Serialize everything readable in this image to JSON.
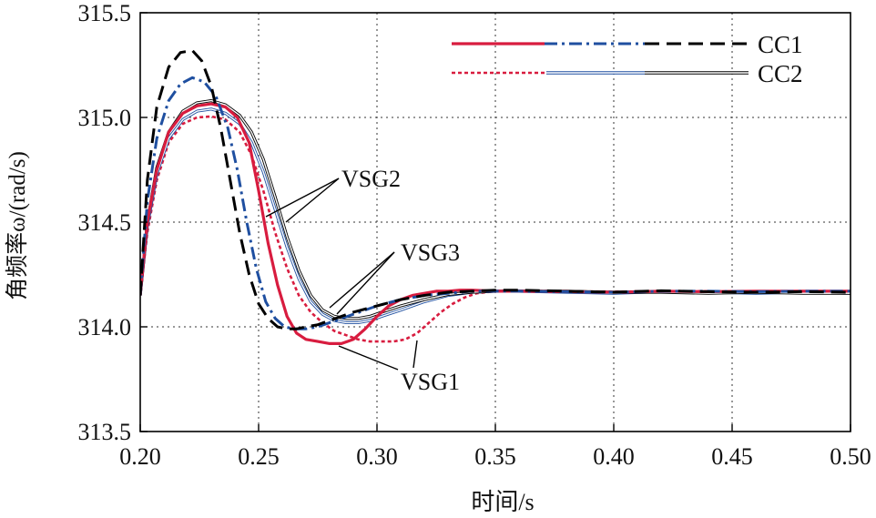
{
  "chart_data": {
    "type": "line",
    "title": "",
    "xlabel": "时间/s",
    "ylabel": "角频率ω/(rad/s)",
    "xlim": [
      0.2,
      0.5
    ],
    "ylim": [
      313.5,
      315.5
    ],
    "x_ticks": [
      "0.20",
      "0.25",
      "0.30",
      "0.35",
      "0.40",
      "0.45",
      "0.50"
    ],
    "y_ticks": [
      "313.5",
      "314.0",
      "314.5",
      "315.0",
      "315.5"
    ],
    "grid": true,
    "legend": [
      {
        "label": "CC1",
        "styles": [
          "VSG1 solid red",
          "VSG2 dash-dot blue",
          "VSG3 dashed black"
        ]
      },
      {
        "label": "CC2",
        "styles": [
          "VSG1 dotted red",
          "VSG2 thin double blue",
          "VSG3 thin double black"
        ]
      }
    ],
    "annotations": [
      "VSG2",
      "VSG3",
      "VSG1"
    ],
    "colors": {
      "vsg1": "#d81c3f",
      "vsg2": "#1f4fa0",
      "vsg3": "#000000"
    },
    "series": [
      {
        "name": "VSG1 CC1",
        "case": "CC1",
        "color": "#d81c3f",
        "style": "solid",
        "x": [
          0.2,
          0.203,
          0.207,
          0.212,
          0.218,
          0.224,
          0.23,
          0.236,
          0.241,
          0.246,
          0.25,
          0.254,
          0.258,
          0.262,
          0.266,
          0.27,
          0.275,
          0.28,
          0.285,
          0.29,
          0.295,
          0.3,
          0.305,
          0.31,
          0.315,
          0.32,
          0.325,
          0.33,
          0.335,
          0.34,
          0.35,
          0.36,
          0.38,
          0.4,
          0.42,
          0.44,
          0.46,
          0.48,
          0.5
        ],
        "y": [
          314.15,
          314.5,
          314.75,
          314.93,
          315.02,
          315.055,
          315.065,
          315.05,
          315.0,
          314.88,
          314.65,
          314.4,
          314.2,
          314.05,
          313.97,
          313.94,
          313.93,
          313.92,
          313.92,
          313.94,
          313.99,
          314.05,
          314.1,
          314.13,
          314.15,
          314.16,
          314.17,
          314.17,
          314.175,
          314.175,
          314.17,
          314.17,
          314.168,
          314.165,
          314.17,
          314.168,
          314.17,
          314.17,
          314.17
        ]
      },
      {
        "name": "VSG2 CC1",
        "case": "CC1",
        "color": "#1f4fa0",
        "style": "dashdot",
        "x": [
          0.2,
          0.203,
          0.207,
          0.212,
          0.217,
          0.222,
          0.227,
          0.232,
          0.237,
          0.241,
          0.245,
          0.249,
          0.253,
          0.257,
          0.261,
          0.265,
          0.27,
          0.275,
          0.28,
          0.29,
          0.3,
          0.31,
          0.32,
          0.33,
          0.34,
          0.35,
          0.36,
          0.38,
          0.4,
          0.42,
          0.44,
          0.46,
          0.48,
          0.5
        ],
        "y": [
          314.15,
          314.6,
          314.9,
          315.08,
          315.16,
          315.19,
          315.17,
          315.1,
          314.95,
          314.75,
          314.5,
          314.28,
          314.12,
          314.04,
          314.0,
          313.99,
          313.99,
          314.0,
          314.02,
          314.06,
          314.1,
          314.13,
          314.15,
          314.16,
          314.17,
          314.17,
          314.17,
          314.168,
          314.165,
          314.17,
          314.17,
          314.168,
          314.17,
          314.17
        ]
      },
      {
        "name": "VSG3 CC1",
        "case": "CC1",
        "color": "#000000",
        "style": "dashed",
        "x": [
          0.2,
          0.203,
          0.207,
          0.212,
          0.217,
          0.222,
          0.226,
          0.23,
          0.234,
          0.238,
          0.242,
          0.246,
          0.25,
          0.254,
          0.258,
          0.262,
          0.266,
          0.27,
          0.275,
          0.28,
          0.29,
          0.3,
          0.31,
          0.32,
          0.33,
          0.34,
          0.35,
          0.36,
          0.38,
          0.4,
          0.42,
          0.44,
          0.46,
          0.48,
          0.5
        ],
        "y": [
          314.15,
          314.7,
          315.05,
          315.24,
          315.31,
          315.32,
          315.27,
          315.15,
          314.95,
          314.7,
          314.45,
          314.25,
          314.11,
          314.04,
          314.0,
          313.99,
          313.99,
          314.0,
          314.01,
          314.03,
          314.07,
          314.1,
          314.13,
          314.15,
          314.165,
          314.17,
          314.175,
          314.175,
          314.17,
          314.165,
          314.172,
          314.168,
          314.165,
          314.168,
          314.165
        ]
      },
      {
        "name": "VSG1 CC2",
        "case": "CC2",
        "color": "#d81c3f",
        "style": "dotted",
        "x": [
          0.2,
          0.203,
          0.207,
          0.212,
          0.218,
          0.224,
          0.23,
          0.236,
          0.242,
          0.247,
          0.252,
          0.257,
          0.262,
          0.267,
          0.272,
          0.277,
          0.282,
          0.287,
          0.292,
          0.297,
          0.302,
          0.307,
          0.312,
          0.317,
          0.322,
          0.327,
          0.332,
          0.337,
          0.342,
          0.35,
          0.36,
          0.38,
          0.4,
          0.42,
          0.44,
          0.46,
          0.48,
          0.5
        ],
        "y": [
          314.15,
          314.45,
          314.7,
          314.88,
          314.97,
          315.0,
          315.005,
          314.99,
          314.93,
          314.82,
          314.65,
          314.45,
          314.28,
          314.15,
          314.07,
          314.02,
          313.98,
          313.96,
          313.94,
          313.93,
          313.93,
          313.93,
          313.94,
          313.97,
          314.02,
          314.07,
          314.11,
          314.14,
          314.16,
          314.17,
          314.172,
          314.17,
          314.168,
          314.17,
          314.17,
          314.168,
          314.17,
          314.17
        ]
      },
      {
        "name": "VSG2 CC2",
        "case": "CC2",
        "color": "#1f4fa0",
        "style": "thin",
        "x": [
          0.2,
          0.203,
          0.207,
          0.212,
          0.218,
          0.224,
          0.23,
          0.236,
          0.242,
          0.247,
          0.252,
          0.257,
          0.262,
          0.267,
          0.272,
          0.277,
          0.282,
          0.287,
          0.292,
          0.297,
          0.302,
          0.31,
          0.32,
          0.33,
          0.34,
          0.35,
          0.36,
          0.38,
          0.4,
          0.42,
          0.44,
          0.46,
          0.48,
          0.5
        ],
        "y": [
          314.15,
          314.48,
          314.73,
          314.9,
          314.99,
          315.03,
          315.04,
          315.02,
          314.97,
          314.88,
          314.74,
          314.56,
          314.38,
          314.23,
          314.12,
          314.06,
          314.03,
          314.02,
          314.02,
          314.03,
          314.05,
          314.08,
          314.12,
          314.15,
          314.165,
          314.17,
          314.17,
          314.165,
          314.16,
          314.168,
          314.165,
          314.16,
          314.165,
          314.16
        ]
      },
      {
        "name": "VSG3 CC2",
        "case": "CC2",
        "color": "#000000",
        "style": "thin",
        "x": [
          0.2,
          0.203,
          0.207,
          0.212,
          0.218,
          0.224,
          0.23,
          0.236,
          0.242,
          0.247,
          0.252,
          0.257,
          0.262,
          0.267,
          0.272,
          0.277,
          0.282,
          0.287,
          0.292,
          0.297,
          0.302,
          0.31,
          0.32,
          0.33,
          0.34,
          0.35,
          0.36,
          0.38,
          0.4,
          0.42,
          0.44,
          0.46,
          0.48,
          0.5
        ],
        "y": [
          314.15,
          314.5,
          314.76,
          314.93,
          315.03,
          315.07,
          315.08,
          315.06,
          315.01,
          314.93,
          314.8,
          314.62,
          314.43,
          314.27,
          314.15,
          314.08,
          314.05,
          314.04,
          314.04,
          314.05,
          314.07,
          314.1,
          314.13,
          314.155,
          314.165,
          314.17,
          314.17,
          314.17,
          314.165,
          314.165,
          314.16,
          314.165,
          314.16,
          314.16
        ]
      }
    ]
  }
}
